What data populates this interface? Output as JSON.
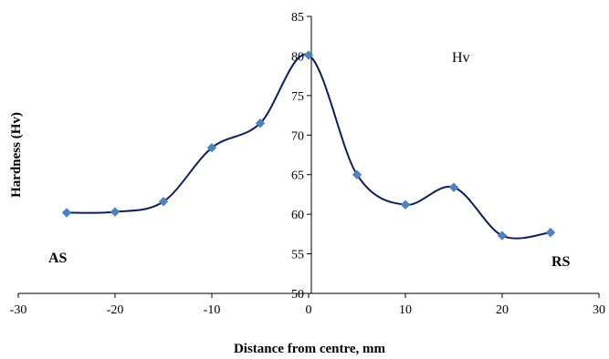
{
  "chart_data": {
    "type": "scatter",
    "title": "",
    "xlabel": "Distance from centre, mm",
    "ylabel": "Hardness (Hv)",
    "xlim": [
      -30,
      30
    ],
    "ylim": [
      50,
      85
    ],
    "x_ticks": [
      -30,
      -20,
      -10,
      0,
      10,
      20,
      30
    ],
    "y_ticks": [
      50,
      55,
      60,
      65,
      70,
      75,
      80,
      85
    ],
    "grid": false,
    "smooth_line": true,
    "series": [
      {
        "name": "Hv",
        "x": [
          -25,
          -20,
          -15,
          -10,
          -5,
          0,
          5,
          10,
          15,
          20,
          25
        ],
        "y": [
          60.2,
          60.3,
          61.6,
          68.4,
          71.5,
          80.1,
          65.0,
          61.2,
          63.4,
          57.3,
          57.7
        ]
      }
    ],
    "annotations": [
      "AS",
      "RS"
    ],
    "colors": {
      "line": "#0d1f5c",
      "marker": "#4f81bd"
    }
  }
}
